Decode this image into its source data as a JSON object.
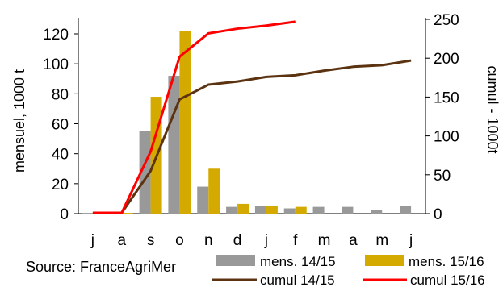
{
  "source": "Source: FranceAgriMer",
  "chart_data": {
    "type": "bar+line",
    "categories": [
      "j",
      "a",
      "s",
      "o",
      "n",
      "d",
      "j",
      "f",
      "m",
      "a",
      "m",
      "j"
    ],
    "y_left": {
      "label": "mensuel, 1000 t",
      "ylim": [
        0,
        130
      ],
      "ticks": [
        0,
        20,
        40,
        60,
        80,
        100,
        120
      ]
    },
    "y_right": {
      "label": "cumul - 1000t",
      "ylim": [
        0,
        250
      ],
      "ticks": [
        0,
        50,
        100,
        150,
        200,
        250
      ]
    },
    "bar_series": [
      {
        "name": "mens. 14/15",
        "color": "#999999",
        "values": [
          0.5,
          0.5,
          55,
          92,
          18,
          4.5,
          5,
          3.5,
          4.5,
          4.5,
          2.5,
          5
        ]
      },
      {
        "name": "mens. 15/16",
        "color": "#d4aa00",
        "values": [
          0.5,
          0.5,
          78,
          122,
          30,
          6.5,
          5,
          4.5,
          null,
          null,
          null,
          null
        ]
      }
    ],
    "line_series": [
      {
        "name": "cumul 14/15",
        "color": "#5c3310",
        "values": [
          1,
          1,
          55,
          147,
          166,
          170,
          176,
          178,
          184,
          189,
          191,
          197
        ]
      },
      {
        "name": "cumul 15/16",
        "color": "#ff0000",
        "values": [
          1,
          1,
          80,
          202,
          232,
          238,
          242,
          247,
          null,
          null,
          null,
          null
        ]
      }
    ],
    "grid": false,
    "legend_position": "bottom-right"
  }
}
